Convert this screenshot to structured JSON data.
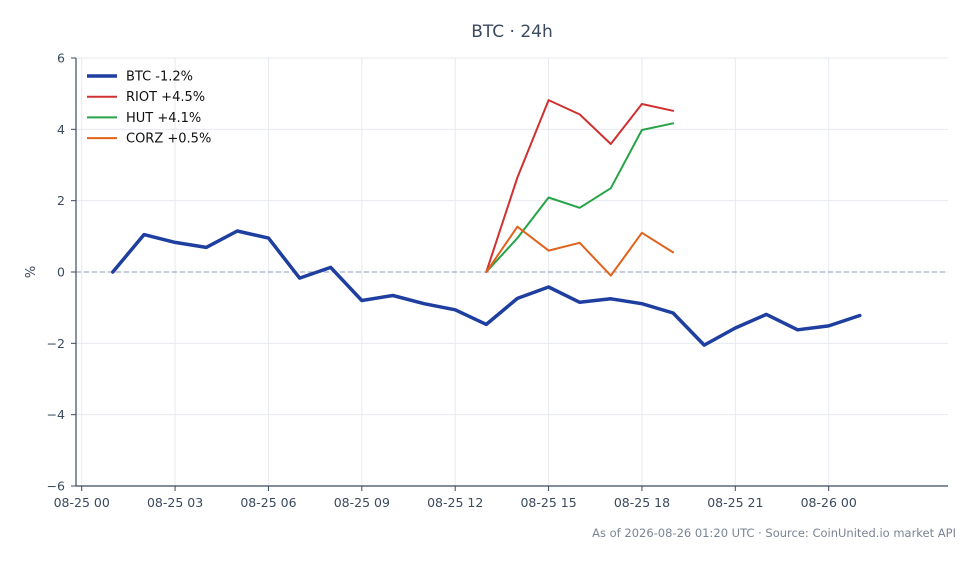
{
  "chart_data": {
    "type": "line",
    "title": "BTC · 24h",
    "xlabel": "",
    "ylabel": "%",
    "xlim": [
      "2026-08-24 23:49",
      "2026-08-26 03:50"
    ],
    "ylim": [
      -6,
      6
    ],
    "x_ticks": [
      "2026-08-25 00:00",
      "2026-08-25 03:00",
      "2026-08-25 06:00",
      "2026-08-25 09:00",
      "2026-08-25 12:00",
      "2026-08-25 15:00",
      "2026-08-25 18:00",
      "2026-08-25 21:00",
      "2026-08-26 00:00"
    ],
    "x_tick_labels": [
      "08-25 00",
      "08-25 03",
      "08-25 06",
      "08-25 09",
      "08-25 12",
      "08-25 15",
      "08-25 18",
      "08-25 21",
      "08-26 00"
    ],
    "y_ticks": [
      6,
      4,
      2,
      0,
      -2,
      -4,
      -6
    ],
    "y_tick_labels": [
      "6",
      "4",
      "2",
      "0",
      "−2",
      "−4",
      "−6"
    ],
    "grid": true,
    "reference_line": {
      "y": 0,
      "style": "dashed"
    },
    "legend_position": "top-left",
    "series": [
      {
        "name": "BTC -1.2%",
        "color": "#1f3fa0",
        "x": [
          "2026-08-25 01:00",
          "2026-08-25 02:00",
          "2026-08-25 03:00",
          "2026-08-25 04:00",
          "2026-08-25 05:00",
          "2026-08-25 06:00",
          "2026-08-25 07:00",
          "2026-08-25 08:00",
          "2026-08-25 09:00",
          "2026-08-25 10:00",
          "2026-08-25 11:00",
          "2026-08-25 12:00",
          "2026-08-25 13:00",
          "2026-08-25 14:00",
          "2026-08-25 15:00",
          "2026-08-25 16:00",
          "2026-08-25 17:00",
          "2026-08-25 18:00",
          "2026-08-25 19:00",
          "2026-08-25 20:00",
          "2026-08-25 21:00",
          "2026-08-25 22:00",
          "2026-08-25 23:00",
          "2026-08-26 00:00",
          "2026-08-26 01:00"
        ],
        "y": [
          0.0,
          1.05,
          0.83,
          0.69,
          1.15,
          0.95,
          -0.17,
          0.13,
          -0.8,
          -0.66,
          -0.89,
          -1.06,
          -1.47,
          -0.74,
          -0.42,
          -0.85,
          -0.75,
          -0.89,
          -1.15,
          -2.05,
          -1.57,
          -1.19,
          -1.62,
          -1.51,
          -1.22
        ]
      },
      {
        "name": "RIOT +4.5%",
        "color": "#d03030",
        "x": [
          "2026-08-25 13:00",
          "2026-08-25 14:00",
          "2026-08-25 15:00",
          "2026-08-25 16:00",
          "2026-08-25 17:00",
          "2026-08-25 18:00",
          "2026-08-25 19:00"
        ],
        "y": [
          0.0,
          2.65,
          4.82,
          4.42,
          3.59,
          4.71,
          4.52
        ]
      },
      {
        "name": "HUT +4.1%",
        "color": "#27a348",
        "x": [
          "2026-08-25 13:00",
          "2026-08-25 14:00",
          "2026-08-25 15:00",
          "2026-08-25 16:00",
          "2026-08-25 17:00",
          "2026-08-25 18:00",
          "2026-08-25 19:00"
        ],
        "y": [
          0.0,
          0.95,
          2.09,
          1.8,
          2.35,
          3.98,
          4.17
        ]
      },
      {
        "name": "CORZ +0.5%",
        "color": "#e0621c",
        "x": [
          "2026-08-25 13:00",
          "2026-08-25 14:00",
          "2026-08-25 15:00",
          "2026-08-25 16:00",
          "2026-08-25 17:00",
          "2026-08-25 18:00",
          "2026-08-25 19:00"
        ],
        "y": [
          0.0,
          1.27,
          0.6,
          0.82,
          -0.1,
          1.1,
          0.55
        ]
      }
    ]
  },
  "footer": "As of 2026-08-26 01:20 UTC · Source: CoinUnited.io market API"
}
